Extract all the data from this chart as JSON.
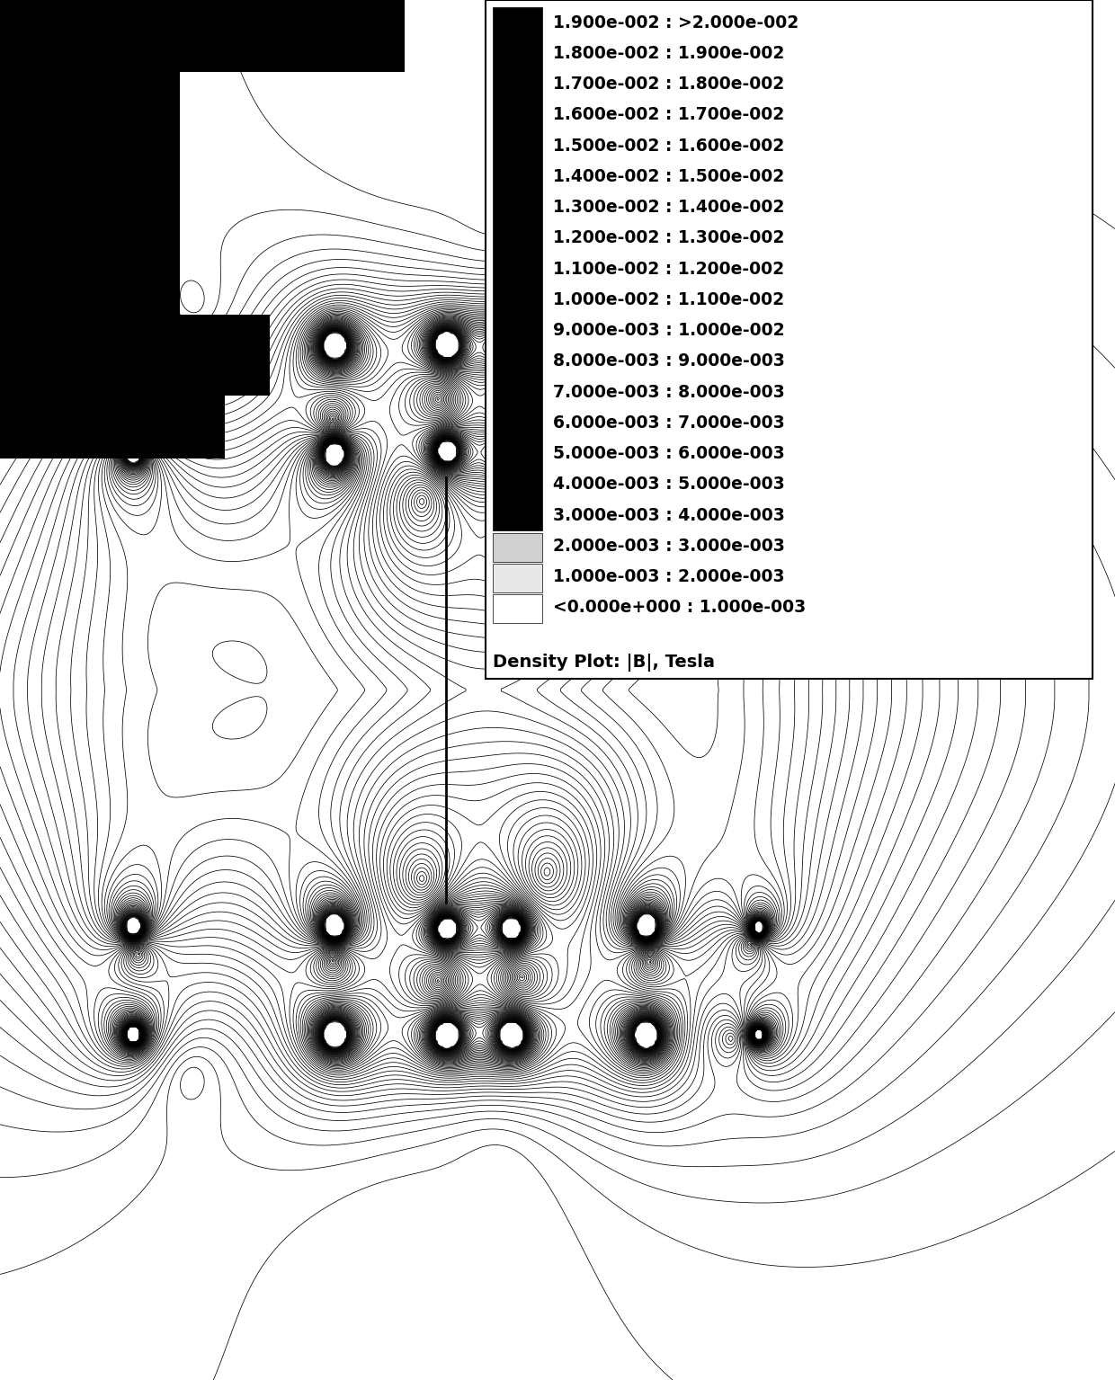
{
  "legend_labels": [
    "1.900e-002 : >2.000e-002",
    "1.800e-002 : 1.900e-002",
    "1.700e-002 : 1.800e-002",
    "1.600e-002 : 1.700e-002",
    "1.500e-002 : 1.600e-002",
    "1.400e-002 : 1.500e-002",
    "1.300e-002 : 1.400e-002",
    "1.200e-002 : 1.300e-002",
    "1.100e-002 : 1.200e-002",
    "1.000e-002 : 1.100e-002",
    "9.000e-003 : 1.000e-002",
    "8.000e-003 : 9.000e-003",
    "7.000e-003 : 8.000e-003",
    "6.000e-003 : 7.000e-003",
    "5.000e-003 : 6.000e-003",
    "4.000e-003 : 5.000e-003",
    "3.000e-003 : 4.000e-003",
    "2.000e-003 : 3.000e-003",
    "1.000e-003 : 2.000e-003",
    "<0.000e+000 : 1.000e-003"
  ],
  "legend_title": "Density Plot: |B|, Tesla",
  "background_color": "#ffffff",
  "contour_color": "#000000",
  "n_levels": 60,
  "B_max": 0.021,
  "B_min": 0.0,
  "figwidth": 12.4,
  "figheight": 15.35,
  "dpi": 100
}
